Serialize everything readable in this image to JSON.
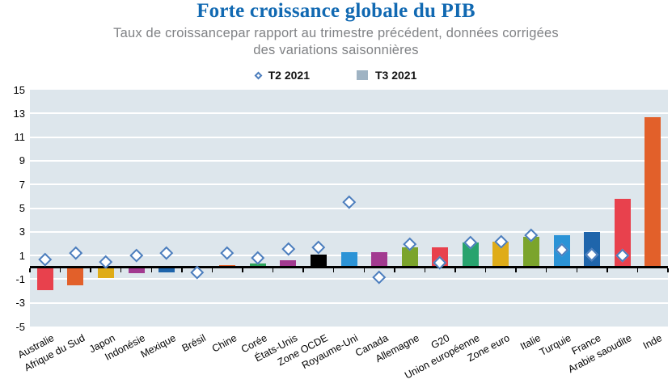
{
  "title": "Forte croissance globale du PIB",
  "subtitle_line1": "Taux de croissancepar rapport au trimestre précédent, données corrigées",
  "subtitle_line2": "des variations saisonnières",
  "legend": {
    "t2_label": "T2 2021",
    "t3_label": "T3 2021"
  },
  "colors": {
    "title": "#1169b2",
    "subtitle": "#808285",
    "plot_background": "#dde6ec",
    "gridline": "#ffffff",
    "axis": "#000000",
    "tick": "#000000",
    "diamond_border": "#4b7dbd",
    "diamond_fill": "#ffffff",
    "legend_square": "#9fb3c3",
    "legend_text": "#121212",
    "axis_text": "#000000"
  },
  "chart_data": {
    "type": "bar",
    "title": "Forte croissance globale du PIB",
    "subtitle": "Taux de croissancepar rapport au trimestre précédent, données corrigées des variations saisonnières",
    "xlabel": "",
    "ylabel": "",
    "ylim": [
      -5,
      15
    ],
    "yticks": [
      15,
      13,
      11,
      9,
      7,
      5,
      3,
      1,
      -1,
      -3,
      -5
    ],
    "grid": true,
    "legend_position": "top",
    "categories": [
      "Australie",
      "Afrique du Sud",
      "Japon",
      "Indonésie",
      "Mexique",
      "Brésil",
      "Chine",
      "Corée",
      "États-Unis",
      "Zone OCDE",
      "Royaume-Uni",
      "Canada",
      "Allemagne",
      "G20",
      "Union européenne",
      "Zone euro",
      "Italie",
      "Turquie",
      "France",
      "Arabie saoudite",
      "Inde"
    ],
    "series": [
      {
        "name": "T2 2021",
        "type": "scatter",
        "marker": "diamond",
        "values": [
          0.7,
          1.2,
          0.5,
          1.0,
          1.2,
          -0.4,
          1.2,
          0.8,
          1.6,
          1.7,
          5.5,
          -0.8,
          2.0,
          0.4,
          2.1,
          2.2,
          2.7,
          1.5,
          1.1,
          1.0,
          null
        ]
      },
      {
        "name": "T3 2021",
        "type": "bar",
        "values": [
          -1.9,
          -1.5,
          -0.9,
          -0.5,
          -0.4,
          -0.1,
          0.2,
          0.3,
          0.6,
          1.1,
          1.3,
          1.3,
          1.7,
          1.7,
          2.1,
          2.2,
          2.6,
          2.7,
          3.0,
          5.8,
          12.7
        ],
        "bar_colors": [
          "#e8414d",
          "#e2602a",
          "#dfac18",
          "#a23a90",
          "#1f65ab",
          "#e8414d",
          "#e2602a",
          "#2ea45c",
          "#a23a90",
          "#000000",
          "#2b93d6",
          "#a23a90",
          "#7ba42c",
          "#e8414d",
          "#28a36e",
          "#dfac18",
          "#7ba42c",
          "#2b93d6",
          "#1f65ab",
          "#e8414d",
          "#e2602a"
        ]
      }
    ]
  }
}
